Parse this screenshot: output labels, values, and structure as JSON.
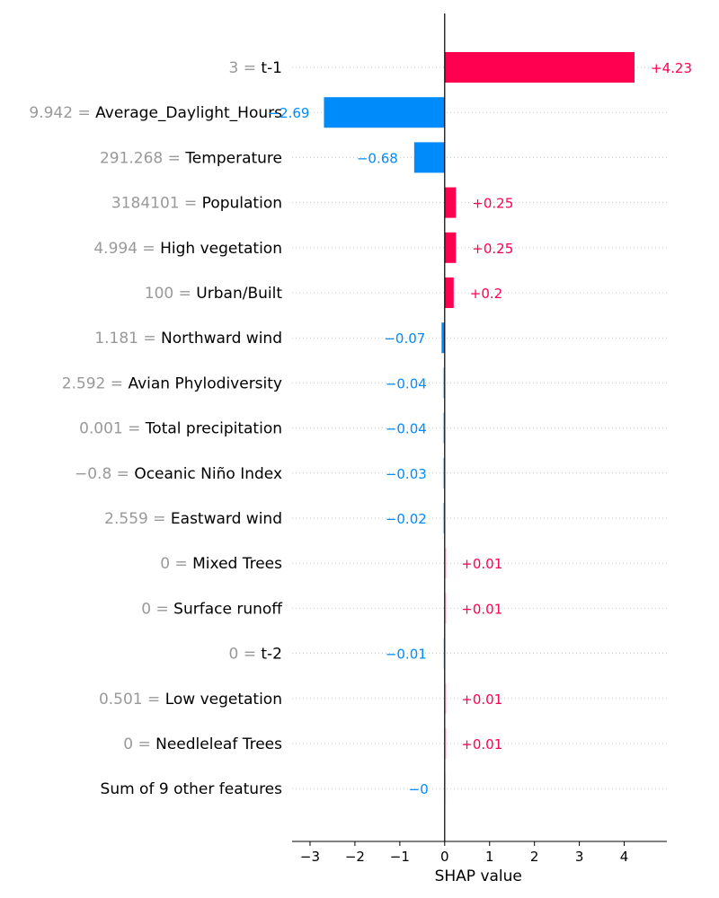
{
  "chart_data": {
    "type": "bar",
    "orientation": "horizontal",
    "xlabel": "SHAP value",
    "xlim": [
      -3.4,
      4.95
    ],
    "xticks": [
      -3,
      -2,
      -1,
      0,
      1,
      2,
      3,
      4
    ],
    "xtick_labels": [
      "−3",
      "−2",
      "−1",
      "0",
      "1",
      "2",
      "3",
      "4"
    ],
    "grid": "dotted horizontal lines per row",
    "colors": {
      "positive": "#ff0051",
      "negative": "#008bfb",
      "feature_value": "#999999"
    },
    "features": [
      {
        "value": "3",
        "name": "t-1",
        "shap": 4.23,
        "label": "+4.23"
      },
      {
        "value": "9.942",
        "name": "Average_Daylight_Hours",
        "shap": -2.69,
        "label": "−2.69"
      },
      {
        "value": "291.268",
        "name": "Temperature",
        "shap": -0.68,
        "label": "−0.68"
      },
      {
        "value": "3184101",
        "name": "Population",
        "shap": 0.25,
        "label": "+0.25"
      },
      {
        "value": "4.994",
        "name": "High vegetation",
        "shap": 0.25,
        "label": "+0.25"
      },
      {
        "value": "100",
        "name": "Urban/Built",
        "shap": 0.2,
        "label": "+0.2"
      },
      {
        "value": "1.181",
        "name": "Northward wind",
        "shap": -0.07,
        "label": "−0.07"
      },
      {
        "value": "2.592",
        "name": "Avian Phylodiversity",
        "shap": -0.04,
        "label": "−0.04"
      },
      {
        "value": "0.001",
        "name": "Total precipitation",
        "shap": -0.04,
        "label": "−0.04"
      },
      {
        "value": "−0.8",
        "name": "Oceanic Niño Index",
        "shap": -0.03,
        "label": "−0.03"
      },
      {
        "value": "2.559",
        "name": "Eastward wind",
        "shap": -0.02,
        "label": "−0.02"
      },
      {
        "value": "0",
        "name": "Mixed Trees",
        "shap": 0.01,
        "label": "+0.01"
      },
      {
        "value": "0",
        "name": "Surface runoff",
        "shap": 0.01,
        "label": "+0.01"
      },
      {
        "value": "0",
        "name": "t-2",
        "shap": -0.01,
        "label": "−0.01"
      },
      {
        "value": "0.501",
        "name": "Low vegetation",
        "shap": 0.01,
        "label": "+0.01"
      },
      {
        "value": "0",
        "name": "Needleleaf Trees",
        "shap": 0.01,
        "label": "+0.01"
      },
      {
        "value": "",
        "name": "Sum of 9 other features",
        "shap": 0,
        "label": "−0"
      }
    ]
  }
}
